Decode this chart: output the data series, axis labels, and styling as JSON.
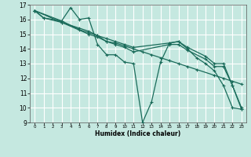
{
  "xlabel": "Humidex (Indice chaleur)",
  "bg_color": "#c5e8e0",
  "grid_color": "#ffffff",
  "line_color": "#1a6b5a",
  "xlim": [
    -0.5,
    23.5
  ],
  "ylim": [
    9,
    17
  ],
  "xticks": [
    0,
    1,
    2,
    3,
    4,
    5,
    6,
    7,
    8,
    9,
    10,
    11,
    12,
    13,
    14,
    15,
    16,
    17,
    18,
    19,
    20,
    21,
    22,
    23
  ],
  "yticks": [
    9,
    10,
    11,
    12,
    13,
    14,
    15,
    16,
    17
  ],
  "lines": [
    {
      "x": [
        0,
        1,
        3,
        4,
        5,
        6,
        7,
        8,
        9,
        10,
        11,
        12,
        13,
        14,
        15,
        16,
        17,
        18,
        19,
        20,
        21,
        22,
        23
      ],
      "y": [
        16.6,
        16.1,
        15.9,
        16.8,
        16.0,
        16.1,
        14.3,
        13.6,
        13.6,
        13.1,
        13.0,
        9.0,
        10.4,
        13.1,
        14.4,
        14.5,
        14.0,
        13.4,
        13.0,
        12.5,
        11.5,
        10.0,
        9.9
      ]
    },
    {
      "x": [
        0,
        1,
        3,
        5,
        6,
        7,
        8,
        9,
        10,
        11,
        12,
        13,
        14,
        15,
        16,
        17,
        18,
        20,
        21,
        22,
        23
      ],
      "y": [
        16.6,
        16.1,
        15.8,
        15.4,
        15.2,
        14.9,
        14.5,
        14.4,
        14.2,
        14.0,
        13.8,
        13.6,
        13.4,
        13.2,
        13.0,
        12.8,
        12.6,
        12.2,
        12.0,
        11.8,
        11.6
      ]
    },
    {
      "x": [
        0,
        3,
        5,
        6,
        7,
        8,
        9,
        10,
        11,
        15,
        16,
        17,
        19,
        20,
        21,
        22,
        23
      ],
      "y": [
        16.6,
        15.9,
        15.3,
        15.1,
        14.9,
        14.7,
        14.5,
        14.3,
        14.1,
        14.4,
        14.5,
        14.1,
        13.5,
        13.0,
        13.0,
        11.5,
        10.0
      ]
    },
    {
      "x": [
        0,
        3,
        6,
        7,
        8,
        9,
        10,
        11,
        15,
        16,
        17,
        19,
        20,
        21,
        22,
        23
      ],
      "y": [
        16.6,
        15.8,
        15.0,
        14.8,
        14.5,
        14.3,
        14.1,
        13.8,
        14.3,
        14.3,
        13.9,
        13.3,
        12.8,
        12.8,
        11.5,
        9.9
      ]
    }
  ]
}
